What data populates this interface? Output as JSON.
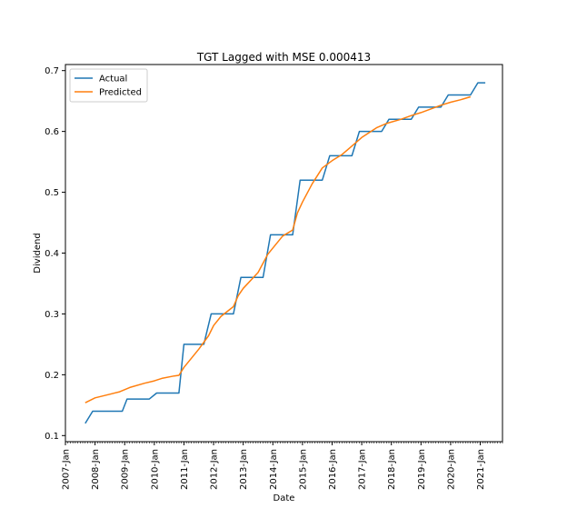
{
  "chart_data": {
    "type": "line",
    "title": "TGT Lagged with MSE   0.000413",
    "xlabel": "Date",
    "ylabel": "Dividend",
    "xlim": [
      2007.0,
      2021.75
    ],
    "ylim": [
      0.09,
      0.71
    ],
    "x_ticks": [
      {
        "value": 2007,
        "label": "2007-Jan"
      },
      {
        "value": 2008,
        "label": "2008-Jan"
      },
      {
        "value": 2009,
        "label": "2009-Jan"
      },
      {
        "value": 2010,
        "label": "2010-Jan"
      },
      {
        "value": 2011,
        "label": "2011-Jan"
      },
      {
        "value": 2012,
        "label": "2012-Jan"
      },
      {
        "value": 2013,
        "label": "2013-Jan"
      },
      {
        "value": 2014,
        "label": "2014-Jan"
      },
      {
        "value": 2015,
        "label": "2015-Jan"
      },
      {
        "value": 2016,
        "label": "2016-Jan"
      },
      {
        "value": 2017,
        "label": "2017-Jan"
      },
      {
        "value": 2018,
        "label": "2018-Jan"
      },
      {
        "value": 2019,
        "label": "2019-Jan"
      },
      {
        "value": 2020,
        "label": "2020-Jan"
      },
      {
        "value": 2021,
        "label": "2021-Jan"
      }
    ],
    "y_ticks": [
      {
        "value": 0.1,
        "label": "0.1"
      },
      {
        "value": 0.2,
        "label": "0.2"
      },
      {
        "value": 0.3,
        "label": "0.3"
      },
      {
        "value": 0.4,
        "label": "0.4"
      },
      {
        "value": 0.5,
        "label": "0.5"
      },
      {
        "value": 0.6,
        "label": "0.6"
      },
      {
        "value": 0.7,
        "label": "0.7"
      }
    ],
    "legend": {
      "placement": "top-left"
    },
    "grid": false,
    "series": [
      {
        "name": "Actual",
        "color": "#1f77b4",
        "points": [
          [
            2007.67,
            0.12
          ],
          [
            2007.92,
            0.14
          ],
          [
            2008.92,
            0.14
          ],
          [
            2009.08,
            0.16
          ],
          [
            2009.83,
            0.16
          ],
          [
            2010.08,
            0.17
          ],
          [
            2010.83,
            0.17
          ],
          [
            2011.0,
            0.25
          ],
          [
            2011.67,
            0.25
          ],
          [
            2011.92,
            0.3
          ],
          [
            2012.67,
            0.3
          ],
          [
            2012.92,
            0.36
          ],
          [
            2013.67,
            0.36
          ],
          [
            2013.92,
            0.43
          ],
          [
            2014.67,
            0.43
          ],
          [
            2014.92,
            0.52
          ],
          [
            2015.67,
            0.52
          ],
          [
            2015.92,
            0.56
          ],
          [
            2016.67,
            0.56
          ],
          [
            2016.92,
            0.6
          ],
          [
            2017.67,
            0.6
          ],
          [
            2017.92,
            0.62
          ],
          [
            2018.67,
            0.62
          ],
          [
            2018.92,
            0.64
          ],
          [
            2019.67,
            0.64
          ],
          [
            2019.92,
            0.66
          ],
          [
            2020.67,
            0.66
          ],
          [
            2020.92,
            0.68
          ],
          [
            2021.17,
            0.68
          ]
        ]
      },
      {
        "name": "Predicted",
        "color": "#ff7f0e",
        "points": [
          [
            2007.67,
            0.154
          ],
          [
            2008.0,
            0.162
          ],
          [
            2008.5,
            0.168
          ],
          [
            2008.83,
            0.172
          ],
          [
            2009.17,
            0.179
          ],
          [
            2009.67,
            0.186
          ],
          [
            2010.0,
            0.19
          ],
          [
            2010.25,
            0.194
          ],
          [
            2010.67,
            0.198
          ],
          [
            2010.83,
            0.199
          ],
          [
            2011.0,
            0.212
          ],
          [
            2011.5,
            0.242
          ],
          [
            2011.83,
            0.264
          ],
          [
            2012.0,
            0.281
          ],
          [
            2012.25,
            0.296
          ],
          [
            2012.67,
            0.312
          ],
          [
            2012.83,
            0.33
          ],
          [
            2013.0,
            0.342
          ],
          [
            2013.5,
            0.368
          ],
          [
            2013.83,
            0.398
          ],
          [
            2014.33,
            0.428
          ],
          [
            2014.67,
            0.438
          ],
          [
            2014.83,
            0.466
          ],
          [
            2015.0,
            0.484
          ],
          [
            2015.33,
            0.514
          ],
          [
            2015.67,
            0.54
          ],
          [
            2016.0,
            0.552
          ],
          [
            2016.33,
            0.562
          ],
          [
            2016.67,
            0.576
          ],
          [
            2017.0,
            0.59
          ],
          [
            2017.5,
            0.606
          ],
          [
            2017.83,
            0.613
          ],
          [
            2018.33,
            0.62
          ],
          [
            2018.67,
            0.626
          ],
          [
            2019.0,
            0.631
          ],
          [
            2019.33,
            0.637
          ],
          [
            2019.67,
            0.643
          ],
          [
            2020.0,
            0.648
          ],
          [
            2020.33,
            0.652
          ],
          [
            2020.67,
            0.657
          ]
        ]
      }
    ]
  }
}
